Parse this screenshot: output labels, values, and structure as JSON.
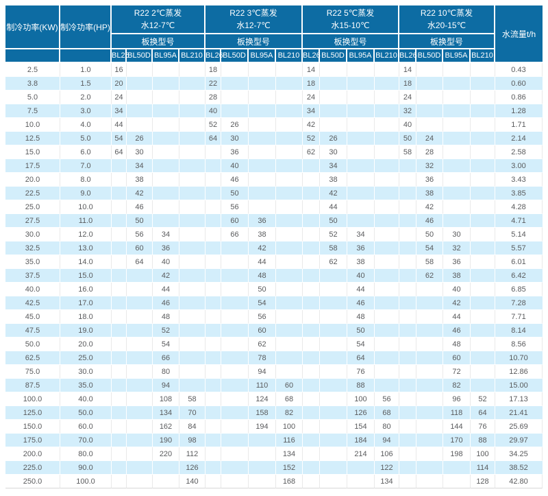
{
  "colors": {
    "header_bg": "#0d6ca3",
    "header_text": "#ffffff",
    "row_alt": "#d3eefb",
    "body_text": "#595a5c"
  },
  "table": {
    "col_kw": "制冷功率(KW)",
    "col_hp": "制冷功率(HP)",
    "col_flow": "水流量t/h",
    "model_label": "板换型号",
    "models": [
      "BL26",
      "BL50D",
      "BL95A",
      "BL210"
    ],
    "groups": [
      {
        "title": "R22 2℃蒸发",
        "subtitle": "水12-7℃"
      },
      {
        "title": "R22 3℃蒸发",
        "subtitle": "水12-7℃"
      },
      {
        "title": "R22 5℃蒸发",
        "subtitle": "水15-10℃"
      },
      {
        "title": "R22 10℃蒸发",
        "subtitle": "水20-15℃"
      }
    ],
    "rows": [
      {
        "kw": "2.5",
        "hp": "1.0",
        "cells": [
          "16",
          "",
          "",
          "",
          "18",
          "",
          "",
          "",
          "14",
          "",
          "",
          "",
          "14",
          "",
          "",
          ""
        ],
        "flow": "0.43"
      },
      {
        "kw": "3.8",
        "hp": "1.5",
        "cells": [
          "20",
          "",
          "",
          "",
          "22",
          "",
          "",
          "",
          "18",
          "",
          "",
          "",
          "18",
          "",
          "",
          ""
        ],
        "flow": "0.60"
      },
      {
        "kw": "5.0",
        "hp": "2.0",
        "cells": [
          "24",
          "",
          "",
          "",
          "28",
          "",
          "",
          "",
          "24",
          "",
          "",
          "",
          "24",
          "",
          "",
          ""
        ],
        "flow": "0.86"
      },
      {
        "kw": "7.5",
        "hp": "3.0",
        "cells": [
          "34",
          "",
          "",
          "",
          "40",
          "",
          "",
          "",
          "34",
          "",
          "",
          "",
          "32",
          "",
          "",
          ""
        ],
        "flow": "1.28"
      },
      {
        "kw": "10.0",
        "hp": "4.0",
        "cells": [
          "44",
          "",
          "",
          "",
          "52",
          "26",
          "",
          "",
          "42",
          "",
          "",
          "",
          "40",
          "",
          "",
          ""
        ],
        "flow": "1.71"
      },
      {
        "kw": "12.5",
        "hp": "5.0",
        "cells": [
          "54",
          "26",
          "",
          "",
          "64",
          "30",
          "",
          "",
          "52",
          "26",
          "",
          "",
          "50",
          "24",
          "",
          ""
        ],
        "flow": "2.14"
      },
      {
        "kw": "15.0",
        "hp": "6.0",
        "cells": [
          "64",
          "30",
          "",
          "",
          "",
          "36",
          "",
          "",
          "62",
          "30",
          "",
          "",
          "58",
          "28",
          "",
          ""
        ],
        "flow": "2.58"
      },
      {
        "kw": "17.5",
        "hp": "7.0",
        "cells": [
          "",
          "34",
          "",
          "",
          "",
          "40",
          "",
          "",
          "",
          "34",
          "",
          "",
          "",
          "32",
          "",
          ""
        ],
        "flow": "3.00"
      },
      {
        "kw": "20.0",
        "hp": "8.0",
        "cells": [
          "",
          "38",
          "",
          "",
          "",
          "46",
          "",
          "",
          "",
          "38",
          "",
          "",
          "",
          "36",
          "",
          ""
        ],
        "flow": "3.43"
      },
      {
        "kw": "22.5",
        "hp": "9.0",
        "cells": [
          "",
          "42",
          "",
          "",
          "",
          "50",
          "",
          "",
          "",
          "42",
          "",
          "",
          "",
          "38",
          "",
          ""
        ],
        "flow": "3.85"
      },
      {
        "kw": "25.0",
        "hp": "10.0",
        "cells": [
          "",
          "46",
          "",
          "",
          "",
          "56",
          "",
          "",
          "",
          "44",
          "",
          "",
          "",
          "42",
          "",
          ""
        ],
        "flow": "4.28"
      },
      {
        "kw": "27.5",
        "hp": "11.0",
        "cells": [
          "",
          "50",
          "",
          "",
          "",
          "60",
          "36",
          "",
          "",
          "50",
          "",
          "",
          "",
          "46",
          "",
          ""
        ],
        "flow": "4.71"
      },
      {
        "kw": "30.0",
        "hp": "12.0",
        "cells": [
          "",
          "56",
          "34",
          "",
          "",
          "66",
          "38",
          "",
          "",
          "52",
          "34",
          "",
          "",
          "50",
          "30",
          ""
        ],
        "flow": "5.14"
      },
      {
        "kw": "32.5",
        "hp": "13.0",
        "cells": [
          "",
          "60",
          "36",
          "",
          "",
          "",
          "42",
          "",
          "",
          "58",
          "36",
          "",
          "",
          "54",
          "32",
          ""
        ],
        "flow": "5.57"
      },
      {
        "kw": "35.0",
        "hp": "14.0",
        "cells": [
          "",
          "64",
          "40",
          "",
          "",
          "",
          "44",
          "",
          "",
          "62",
          "38",
          "",
          "",
          "58",
          "36",
          ""
        ],
        "flow": "6.01"
      },
      {
        "kw": "37.5",
        "hp": "15.0",
        "cells": [
          "",
          "",
          "42",
          "",
          "",
          "",
          "48",
          "",
          "",
          "",
          "40",
          "",
          "",
          "62",
          "38",
          ""
        ],
        "flow": "6.42"
      },
      {
        "kw": "40.0",
        "hp": "16.0",
        "cells": [
          "",
          "",
          "44",
          "",
          "",
          "",
          "50",
          "",
          "",
          "",
          "44",
          "",
          "",
          "",
          "40",
          ""
        ],
        "flow": "6.85"
      },
      {
        "kw": "42.5",
        "hp": "17.0",
        "cells": [
          "",
          "",
          "46",
          "",
          "",
          "",
          "54",
          "",
          "",
          "",
          "46",
          "",
          "",
          "",
          "42",
          ""
        ],
        "flow": "7.28"
      },
      {
        "kw": "45.0",
        "hp": "18.0",
        "cells": [
          "",
          "",
          "48",
          "",
          "",
          "",
          "56",
          "",
          "",
          "",
          "48",
          "",
          "",
          "",
          "44",
          ""
        ],
        "flow": "7.71"
      },
      {
        "kw": "47.5",
        "hp": "19.0",
        "cells": [
          "",
          "",
          "52",
          "",
          "",
          "",
          "60",
          "",
          "",
          "",
          "50",
          "",
          "",
          "",
          "46",
          ""
        ],
        "flow": "8.14"
      },
      {
        "kw": "50.0",
        "hp": "20.0",
        "cells": [
          "",
          "",
          "54",
          "",
          "",
          "",
          "62",
          "",
          "",
          "",
          "54",
          "",
          "",
          "",
          "48",
          ""
        ],
        "flow": "8.56"
      },
      {
        "kw": "62.5",
        "hp": "25.0",
        "cells": [
          "",
          "",
          "66",
          "",
          "",
          "",
          "78",
          "",
          "",
          "",
          "64",
          "",
          "",
          "",
          "60",
          ""
        ],
        "flow": "10.70"
      },
      {
        "kw": "75.0",
        "hp": "30.0",
        "cells": [
          "",
          "",
          "80",
          "",
          "",
          "",
          "94",
          "",
          "",
          "",
          "76",
          "",
          "",
          "",
          "72",
          ""
        ],
        "flow": "12.86"
      },
      {
        "kw": "87.5",
        "hp": "35.0",
        "cells": [
          "",
          "",
          "94",
          "",
          "",
          "",
          "110",
          "60",
          "",
          "",
          "88",
          "",
          "",
          "",
          "82",
          ""
        ],
        "flow": "15.00"
      },
      {
        "kw": "100.0",
        "hp": "40.0",
        "cells": [
          "",
          "",
          "108",
          "58",
          "",
          "",
          "124",
          "68",
          "",
          "",
          "100",
          "56",
          "",
          "",
          "96",
          "52"
        ],
        "flow": "17.13"
      },
      {
        "kw": "125.0",
        "hp": "50.0",
        "cells": [
          "",
          "",
          "134",
          "70",
          "",
          "",
          "158",
          "82",
          "",
          "",
          "126",
          "68",
          "",
          "",
          "118",
          "64"
        ],
        "flow": "21.41"
      },
      {
        "kw": "150.0",
        "hp": "60.0",
        "cells": [
          "",
          "",
          "162",
          "84",
          "",
          "",
          "194",
          "100",
          "",
          "",
          "154",
          "80",
          "",
          "",
          "144",
          "76"
        ],
        "flow": "25.69"
      },
      {
        "kw": "175.0",
        "hp": "70.0",
        "cells": [
          "",
          "",
          "190",
          "98",
          "",
          "",
          "",
          "116",
          "",
          "",
          "184",
          "94",
          "",
          "",
          "170",
          "88"
        ],
        "flow": "29.97"
      },
      {
        "kw": "200.0",
        "hp": "80.0",
        "cells": [
          "",
          "",
          "220",
          "112",
          "",
          "",
          "",
          "134",
          "",
          "",
          "214",
          "106",
          "",
          "",
          "198",
          "100"
        ],
        "flow": "34.25"
      },
      {
        "kw": "225.0",
        "hp": "90.0",
        "cells": [
          "",
          "",
          "",
          "126",
          "",
          "",
          "",
          "152",
          "",
          "",
          "",
          "122",
          "",
          "",
          "",
          "114"
        ],
        "flow": "38.52"
      },
      {
        "kw": "250.0",
        "hp": "100.0",
        "cells": [
          "",
          "",
          "",
          "140",
          "",
          "",
          "",
          "168",
          "",
          "",
          "",
          "134",
          "",
          "",
          "",
          "128"
        ],
        "flow": "42.80"
      }
    ]
  }
}
